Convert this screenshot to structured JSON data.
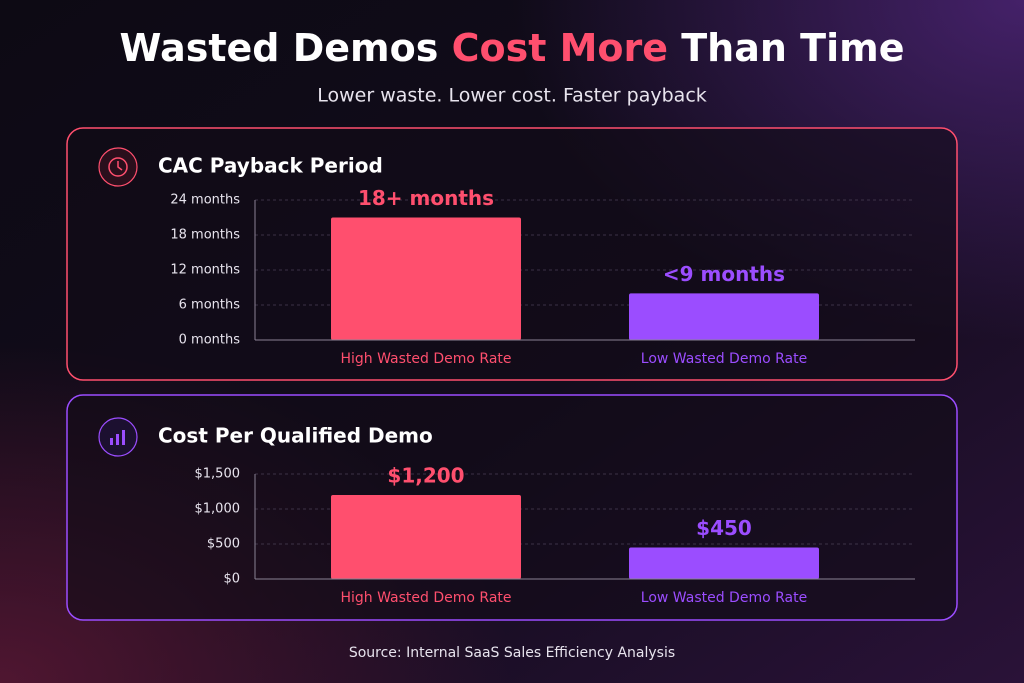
{
  "title_parts": [
    "Wasted Demos",
    "Cost More",
    "Than Time"
  ],
  "subtitle": "Lower waste. Lower cost. Faster payback",
  "source": "Source: Internal SaaS Sales Efficiency Analysis",
  "chart_data": [
    {
      "type": "bar",
      "title": "CAC Payback Period",
      "categories": [
        "High Wasted Demo Rate",
        "Low Wasted Demo Rate"
      ],
      "values": [
        21,
        8
      ],
      "value_labels": [
        "18+ months",
        "<9 months"
      ],
      "colors": [
        "#ff4f6e",
        "#9b4dff"
      ],
      "ylim": [
        0,
        24
      ],
      "yticks": [
        {
          "value": 0,
          "label": "0 months"
        },
        {
          "value": 6,
          "label": "6 months"
        },
        {
          "value": 12,
          "label": "12 months"
        },
        {
          "value": 18,
          "label": "18 months"
        },
        {
          "value": 24,
          "label": "24 months"
        }
      ],
      "grid": true
    },
    {
      "type": "bar",
      "title": "Cost Per Qualified Demo",
      "categories": [
        "High Wasted Demo Rate",
        "Low Wasted Demo Rate"
      ],
      "values": [
        1200,
        450
      ],
      "value_labels": [
        "$1,200",
        "$450"
      ],
      "colors": [
        "#ff4f6e",
        "#9b4dff"
      ],
      "ylim": [
        0,
        1500
      ],
      "yticks": [
        {
          "value": 0,
          "label": "$0"
        },
        {
          "value": 500,
          "label": "$500"
        },
        {
          "value": 1000,
          "label": "$1,000"
        },
        {
          "value": 1500,
          "label": "$1,500"
        }
      ],
      "grid": true
    }
  ]
}
